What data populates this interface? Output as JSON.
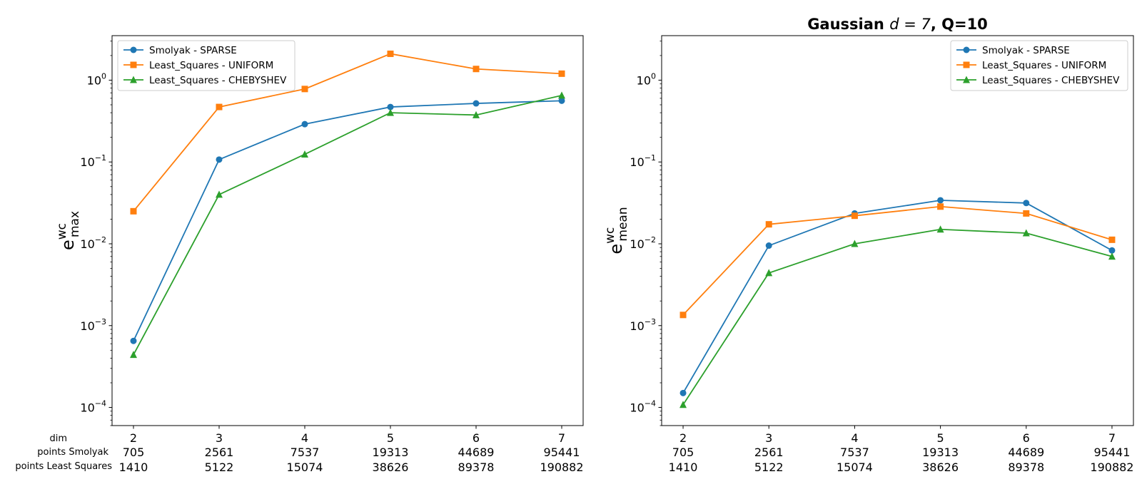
{
  "figure": {
    "row_labels": [
      "dim",
      "points Smolyak",
      "points Least Squares"
    ]
  },
  "chart_data": [
    {
      "type": "line",
      "title": "",
      "ylabel_base": "e",
      "ylabel_sup": "wc",
      "ylabel_sub": "max",
      "yscale": "log",
      "ylim": [
        6e-05,
        3.5
      ],
      "yticks": [
        0.0001,
        0.001,
        0.01,
        0.1,
        1
      ],
      "ytick_labels": [
        {
          "base": "10",
          "exp": "−4"
        },
        {
          "base": "10",
          "exp": "−3"
        },
        {
          "base": "10",
          "exp": "−2"
        },
        {
          "base": "10",
          "exp": "−1"
        },
        {
          "base": "10",
          "exp": "0"
        }
      ],
      "x": [
        2,
        3,
        4,
        5,
        6,
        7
      ],
      "xlim": [
        1.75,
        7.25
      ],
      "xtick_rows": [
        [
          "2",
          "3",
          "4",
          "5",
          "6",
          "7"
        ],
        [
          "705",
          "2561",
          "7537",
          "19313",
          "44689",
          "95441"
        ],
        [
          "1410",
          "5122",
          "15074",
          "38626",
          "89378",
          "190882"
        ]
      ],
      "legend_position": "upper-left",
      "grid": false,
      "series": [
        {
          "name": "Smolyak - SPARSE",
          "color": "#1f77b4",
          "marker": "circle",
          "values": [
            0.00065,
            0.107,
            0.29,
            0.47,
            0.52,
            0.56
          ]
        },
        {
          "name": "Least_Squares - UNIFORM",
          "color": "#ff7f0e",
          "marker": "square",
          "values": [
            0.025,
            0.47,
            0.78,
            2.1,
            1.37,
            1.2
          ]
        },
        {
          "name": "Least_Squares - CHEBYSHEV",
          "color": "#2ca02c",
          "marker": "triangle",
          "values": [
            0.00044,
            0.04,
            0.124,
            0.4,
            0.375,
            0.65
          ]
        }
      ]
    },
    {
      "type": "line",
      "title": "Gaussian",
      "title_math": "d = 7",
      "title_suffix": ", Q=10",
      "ylabel_base": "e",
      "ylabel_sup": "wc",
      "ylabel_sub": "mean",
      "yscale": "log",
      "ylim": [
        6e-05,
        3.5
      ],
      "yticks": [
        0.0001,
        0.001,
        0.01,
        0.1,
        1
      ],
      "ytick_labels": [
        {
          "base": "10",
          "exp": "−4"
        },
        {
          "base": "10",
          "exp": "−3"
        },
        {
          "base": "10",
          "exp": "−2"
        },
        {
          "base": "10",
          "exp": "−1"
        },
        {
          "base": "10",
          "exp": "0"
        }
      ],
      "x": [
        2,
        3,
        4,
        5,
        6,
        7
      ],
      "xlim": [
        1.75,
        7.25
      ],
      "xtick_rows": [
        [
          "2",
          "3",
          "4",
          "5",
          "6",
          "7"
        ],
        [
          "705",
          "2561",
          "7537",
          "19313",
          "44689",
          "95441"
        ],
        [
          "1410",
          "5122",
          "15074",
          "38626",
          "89378",
          "190882"
        ]
      ],
      "legend_position": "upper-right",
      "grid": false,
      "series": [
        {
          "name": "Smolyak - SPARSE",
          "color": "#1f77b4",
          "marker": "circle",
          "values": [
            0.00015,
            0.0095,
            0.0235,
            0.034,
            0.0315,
            0.0083
          ]
        },
        {
          "name": "Least_Squares - UNIFORM",
          "color": "#ff7f0e",
          "marker": "square",
          "values": [
            0.00135,
            0.0173,
            0.022,
            0.0285,
            0.0235,
            0.0112
          ]
        },
        {
          "name": "Least_Squares - CHEBYSHEV",
          "color": "#2ca02c",
          "marker": "triangle",
          "values": [
            0.000108,
            0.0044,
            0.01,
            0.015,
            0.0135,
            0.007
          ]
        }
      ]
    }
  ]
}
